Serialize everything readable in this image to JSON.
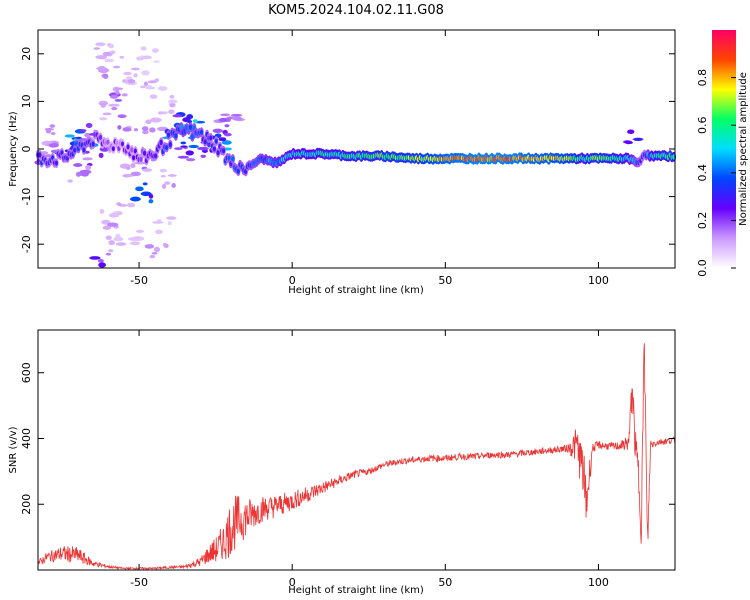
{
  "figure": {
    "title": "KOM5.2024.104.02.11.G08"
  },
  "chart_data": [
    {
      "type": "heatmap",
      "xlabel": "Height of straight line (km)",
      "ylabel": "Frequency (Hz)",
      "xlim": [
        -83,
        125
      ],
      "ylim": [
        -25,
        25
      ],
      "x_ticks": [
        -50,
        0,
        50,
        100
      ],
      "y_ticks": [
        -20,
        -10,
        0,
        10,
        20
      ],
      "colorbar": {
        "label": "Normalized spectral amplitude",
        "range": [
          0,
          1
        ],
        "ticks": [
          0.0,
          0.2,
          0.4,
          0.6,
          0.8
        ],
        "tick_labels": [
          "0.0",
          "0.2",
          "0.4",
          "0.6",
          "0.8"
        ],
        "colors": [
          "#ffffff",
          "#cc99ff",
          "#6600ff",
          "#0044ff",
          "#00ddff",
          "#00ff66",
          "#ffff00",
          "#ff4400",
          "#ff0066"
        ]
      },
      "ridge": {
        "x": [
          -83,
          -75,
          -70,
          -65,
          -60,
          -55,
          -50,
          -45,
          -40,
          -35,
          -30,
          -25,
          -20,
          -15,
          -10,
          -5,
          0,
          10,
          20,
          30,
          40,
          50,
          60,
          70,
          80,
          90,
          95,
          100,
          105,
          110,
          113,
          115,
          117,
          120,
          125
        ],
        "y": [
          -2,
          -2,
          0,
          2,
          1,
          1,
          -2,
          -1,
          2,
          4,
          3,
          1,
          -3,
          -4,
          -2,
          -3,
          -1,
          -1,
          -1.5,
          -1.5,
          -2,
          -2,
          -2,
          -2,
          -2,
          -2,
          -2,
          -2,
          -2,
          -2,
          -3,
          -1,
          -1.5,
          -1.5,
          -1.5
        ],
        "amplitude": [
          0.3,
          0.3,
          0.35,
          0.3,
          0.2,
          0.2,
          0.25,
          0.3,
          0.35,
          0.4,
          0.35,
          0.3,
          0.35,
          0.35,
          0.4,
          0.45,
          0.5,
          0.55,
          0.6,
          0.65,
          0.7,
          0.8,
          0.85,
          0.85,
          0.8,
          0.75,
          0.55,
          0.7,
          0.6,
          0.5,
          0.35,
          0.3,
          0.5,
          0.6,
          0.6
        ]
      },
      "scatter_blobs": [
        {
          "x": -78,
          "y": 3,
          "a": 0.15
        },
        {
          "x": -75,
          "y": -1,
          "a": 0.35
        },
        {
          "x": -72,
          "y": 2,
          "a": 0.4
        },
        {
          "x": -68,
          "y": 1,
          "a": 0.5
        },
        {
          "x": -66,
          "y": 4,
          "a": 0.2
        },
        {
          "x": -70,
          "y": -5,
          "a": 0.15
        },
        {
          "x": -62,
          "y": 21,
          "a": 0.1
        },
        {
          "x": -58,
          "y": 19,
          "a": 0.1
        },
        {
          "x": -60,
          "y": 16,
          "a": 0.15
        },
        {
          "x": -55,
          "y": 14,
          "a": 0.1
        },
        {
          "x": -57,
          "y": 12,
          "a": 0.2
        },
        {
          "x": -50,
          "y": 15,
          "a": 0.1
        },
        {
          "x": -47,
          "y": 20,
          "a": 0.08
        },
        {
          "x": -44,
          "y": 13,
          "a": 0.1
        },
        {
          "x": -61,
          "y": 8,
          "a": 0.12
        },
        {
          "x": -54,
          "y": 6,
          "a": 0.15
        },
        {
          "x": -45,
          "y": 5,
          "a": 0.12
        },
        {
          "x": -41,
          "y": 9,
          "a": 0.1
        },
        {
          "x": -52,
          "y": -4,
          "a": 0.12
        },
        {
          "x": -49,
          "y": -9,
          "a": 0.35
        },
        {
          "x": -55,
          "y": -12,
          "a": 0.1
        },
        {
          "x": -60,
          "y": -15,
          "a": 0.12
        },
        {
          "x": -58,
          "y": -20,
          "a": 0.1
        },
        {
          "x": -62,
          "y": -24,
          "a": 0.25
        },
        {
          "x": -50,
          "y": -18,
          "a": 0.1
        },
        {
          "x": -44,
          "y": -22,
          "a": 0.12
        },
        {
          "x": -42,
          "y": -16,
          "a": 0.08
        },
        {
          "x": -48,
          "y": -3,
          "a": 0.15
        },
        {
          "x": -38,
          "y": 3,
          "a": 0.4
        },
        {
          "x": -35,
          "y": 6,
          "a": 0.3
        },
        {
          "x": -32,
          "y": 4,
          "a": 0.45
        },
        {
          "x": -30,
          "y": 1,
          "a": 0.35
        },
        {
          "x": -27,
          "y": 0,
          "a": 0.3
        },
        {
          "x": -24,
          "y": 1,
          "a": 0.4
        },
        {
          "x": -22,
          "y": 5,
          "a": 0.2
        },
        {
          "x": -19,
          "y": 6,
          "a": 0.15
        },
        {
          "x": -36,
          "y": -1,
          "a": 0.25
        },
        {
          "x": -40,
          "y": -6,
          "a": 0.12
        },
        {
          "x": -64,
          "y": -2,
          "a": 0.2
        },
        {
          "x": -80,
          "y": 0,
          "a": 0.2
        },
        {
          "x": -82,
          "y": -4,
          "a": 0.3
        },
        {
          "x": 112,
          "y": 2,
          "a": 0.3
        }
      ]
    },
    {
      "type": "line",
      "xlabel": "Height of straight line (km)",
      "ylabel": "SNR (v/v)",
      "xlim": [
        -83,
        125
      ],
      "ylim": [
        0,
        730
      ],
      "x_ticks": [
        -50,
        0,
        50,
        100
      ],
      "y_ticks": [
        200,
        400,
        600
      ],
      "series_color": "#ee3333",
      "x": [
        -83,
        -80,
        -75,
        -70,
        -65,
        -60,
        -55,
        -50,
        -45,
        -40,
        -35,
        -30,
        -27,
        -25,
        -22,
        -20,
        -18,
        -15,
        -12,
        -10,
        -5,
        0,
        5,
        10,
        15,
        20,
        25,
        30,
        35,
        40,
        45,
        50,
        55,
        60,
        65,
        70,
        75,
        80,
        85,
        90,
        93,
        95,
        96,
        98,
        100,
        105,
        108,
        110,
        111,
        112,
        113,
        114,
        115,
        116,
        117,
        118,
        120,
        125
      ],
      "y": [
        20,
        40,
        50,
        45,
        20,
        10,
        5,
        5,
        5,
        8,
        10,
        25,
        50,
        60,
        90,
        130,
        150,
        160,
        175,
        185,
        195,
        210,
        230,
        250,
        270,
        290,
        300,
        320,
        330,
        335,
        340,
        340,
        345,
        345,
        350,
        350,
        355,
        360,
        365,
        370,
        380,
        300,
        200,
        370,
        380,
        375,
        380,
        390,
        560,
        380,
        300,
        150,
        700,
        60,
        380,
        385,
        390,
        395
      ],
      "noise": [
        10,
        15,
        25,
        25,
        10,
        4,
        3,
        3,
        3,
        4,
        5,
        15,
        30,
        40,
        60,
        90,
        80,
        60,
        45,
        40,
        35,
        30,
        25,
        20,
        15,
        12,
        10,
        10,
        10,
        10,
        10,
        10,
        10,
        10,
        10,
        10,
        10,
        10,
        10,
        12,
        60,
        80,
        90,
        15,
        12,
        12,
        15,
        30,
        60,
        50,
        60,
        80,
        80,
        60,
        25,
        12,
        10,
        10
      ]
    }
  ]
}
